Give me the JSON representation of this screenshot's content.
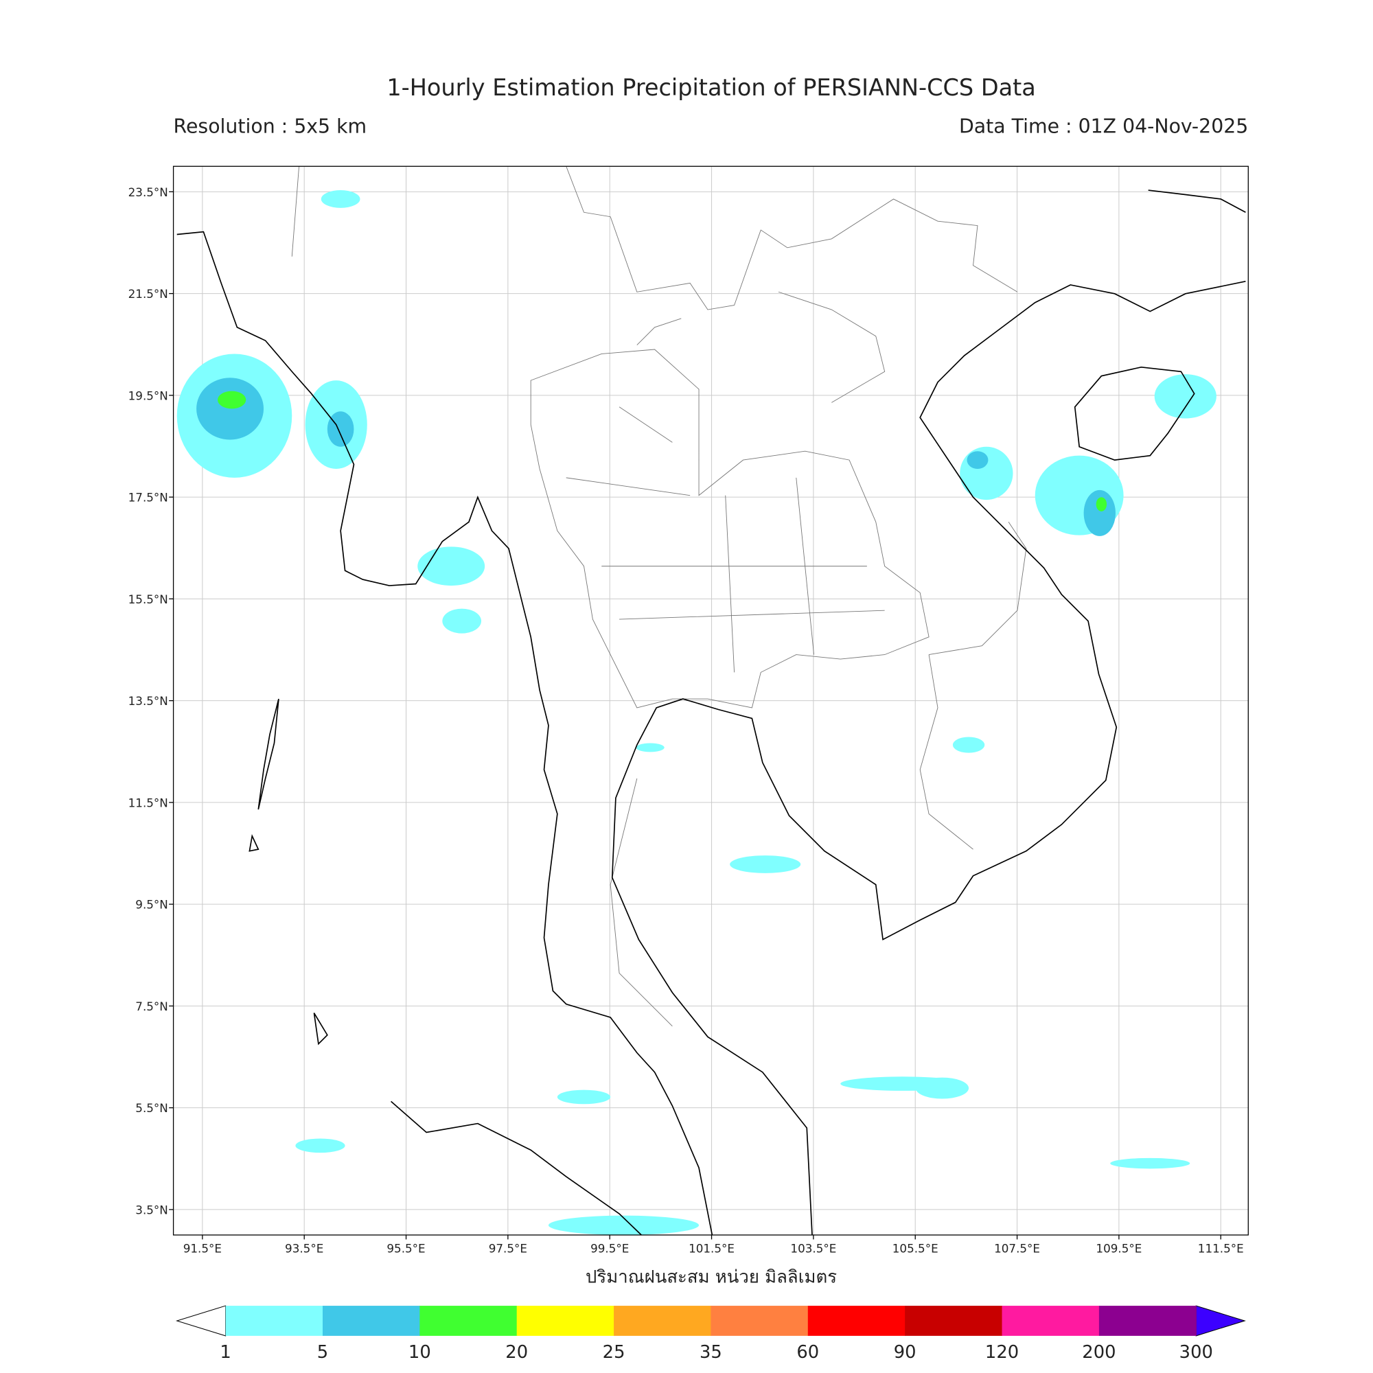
{
  "header": {
    "title": "1-Hourly Estimation Precipitation of PERSIANN-CCS Data",
    "resolution": "Resolution : 5x5 km",
    "data_time": "Data Time : 01Z 04-Nov-2025"
  },
  "map": {
    "xlim": [
      90.93,
      112.04
    ],
    "ylim": [
      3.0,
      24.0
    ],
    "grid": true,
    "xticks": [
      {
        "value": 91.5,
        "label": "91.5°E"
      },
      {
        "value": 93.5,
        "label": "93.5°E"
      },
      {
        "value": 95.5,
        "label": "95.5°E"
      },
      {
        "value": 97.5,
        "label": "97.5°E"
      },
      {
        "value": 99.5,
        "label": "99.5°E"
      },
      {
        "value": 101.5,
        "label": "101.5°E"
      },
      {
        "value": 103.5,
        "label": "103.5°E"
      },
      {
        "value": 105.5,
        "label": "105.5°E"
      },
      {
        "value": 107.5,
        "label": "107.5°E"
      },
      {
        "value": 109.5,
        "label": "109.5°E"
      },
      {
        "value": 111.5,
        "label": "111.5°E"
      }
    ],
    "yticks": [
      {
        "value": 23.5,
        "label": "23.5°N"
      },
      {
        "value": 21.5,
        "label": "21.5°N"
      },
      {
        "value": 19.5,
        "label": "19.5°N"
      },
      {
        "value": 17.5,
        "label": "17.5°N"
      },
      {
        "value": 15.5,
        "label": "15.5°N"
      },
      {
        "value": 13.5,
        "label": "13.5°N"
      },
      {
        "value": 11.5,
        "label": "11.5°N"
      },
      {
        "value": 9.5,
        "label": "9.5°N"
      },
      {
        "value": 7.5,
        "label": "7.5°N"
      },
      {
        "value": 5.5,
        "label": "5.5°N"
      },
      {
        "value": 3.5,
        "label": "3.5°N"
      }
    ],
    "xlabel": "ปริมาณฝนสะสม หน่วย มิลลิเมตร"
  },
  "colorbar": {
    "levels": [
      1,
      5,
      10,
      20,
      25,
      35,
      60,
      90,
      120,
      200,
      300
    ],
    "colors": [
      "#80ffff",
      "#40c8e8",
      "#40ff30",
      "#ffff00",
      "#ffa820",
      "#ff8040",
      "#ff0000",
      "#c80000",
      "#ff1aa0",
      "#8c0090"
    ],
    "under_color": "#ffffff",
    "over_color": "#3c00ff"
  }
}
